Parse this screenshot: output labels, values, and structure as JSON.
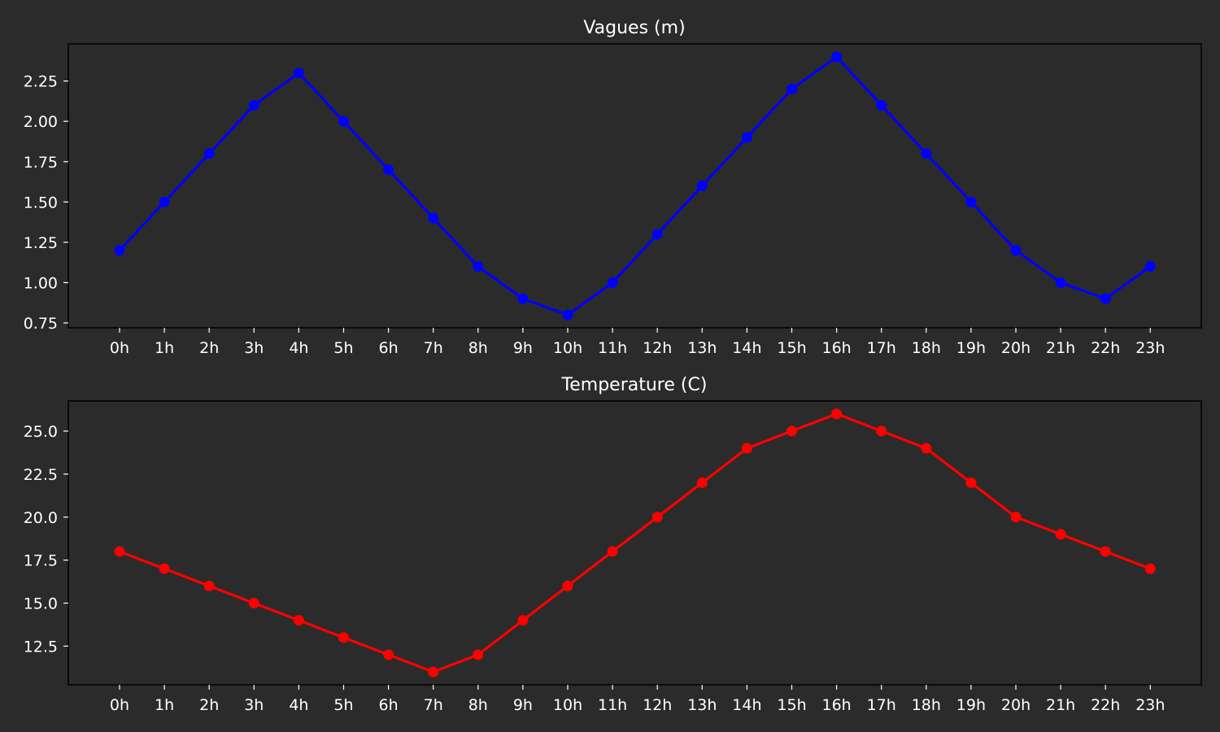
{
  "chart_data": [
    {
      "type": "line",
      "title": "Vagues (m)",
      "xlabel": "",
      "ylabel": "",
      "categories": [
        "0h",
        "1h",
        "2h",
        "3h",
        "4h",
        "5h",
        "6h",
        "7h",
        "8h",
        "9h",
        "10h",
        "11h",
        "12h",
        "13h",
        "14h",
        "15h",
        "16h",
        "17h",
        "18h",
        "19h",
        "20h",
        "21h",
        "22h",
        "23h"
      ],
      "series": [
        {
          "color": "#0000ff",
          "marker": "circle",
          "values": [
            1.2,
            1.5,
            1.8,
            2.1,
            2.3,
            2.0,
            1.7,
            1.4,
            1.1,
            0.9,
            0.8,
            1.0,
            1.3,
            1.6,
            1.9,
            2.2,
            2.4,
            2.1,
            1.8,
            1.5,
            1.2,
            1.0,
            0.9,
            1.1
          ]
        }
      ],
      "yticks": [
        "0.75",
        "1.00",
        "1.25",
        "1.50",
        "1.75",
        "2.00",
        "2.25"
      ],
      "ylim": [
        0.72,
        2.48
      ],
      "grid": false,
      "legend": "none"
    },
    {
      "type": "line",
      "title": "Temperature (C)",
      "xlabel": "",
      "ylabel": "",
      "categories": [
        "0h",
        "1h",
        "2h",
        "3h",
        "4h",
        "5h",
        "6h",
        "7h",
        "8h",
        "9h",
        "10h",
        "11h",
        "12h",
        "13h",
        "14h",
        "15h",
        "16h",
        "17h",
        "18h",
        "19h",
        "20h",
        "21h",
        "22h",
        "23h"
      ],
      "series": [
        {
          "color": "#ff0000",
          "marker": "circle",
          "values": [
            18,
            17,
            16,
            15,
            14,
            13,
            12,
            11,
            12,
            14,
            16,
            18,
            20,
            22,
            24,
            25,
            26,
            25,
            24,
            22,
            20,
            19,
            18,
            17
          ]
        }
      ],
      "yticks": [
        "12.5",
        "15.0",
        "17.5",
        "20.0",
        "22.5",
        "25.0"
      ],
      "ylim": [
        10.25,
        26.75
      ],
      "grid": false,
      "legend": "none"
    }
  ]
}
